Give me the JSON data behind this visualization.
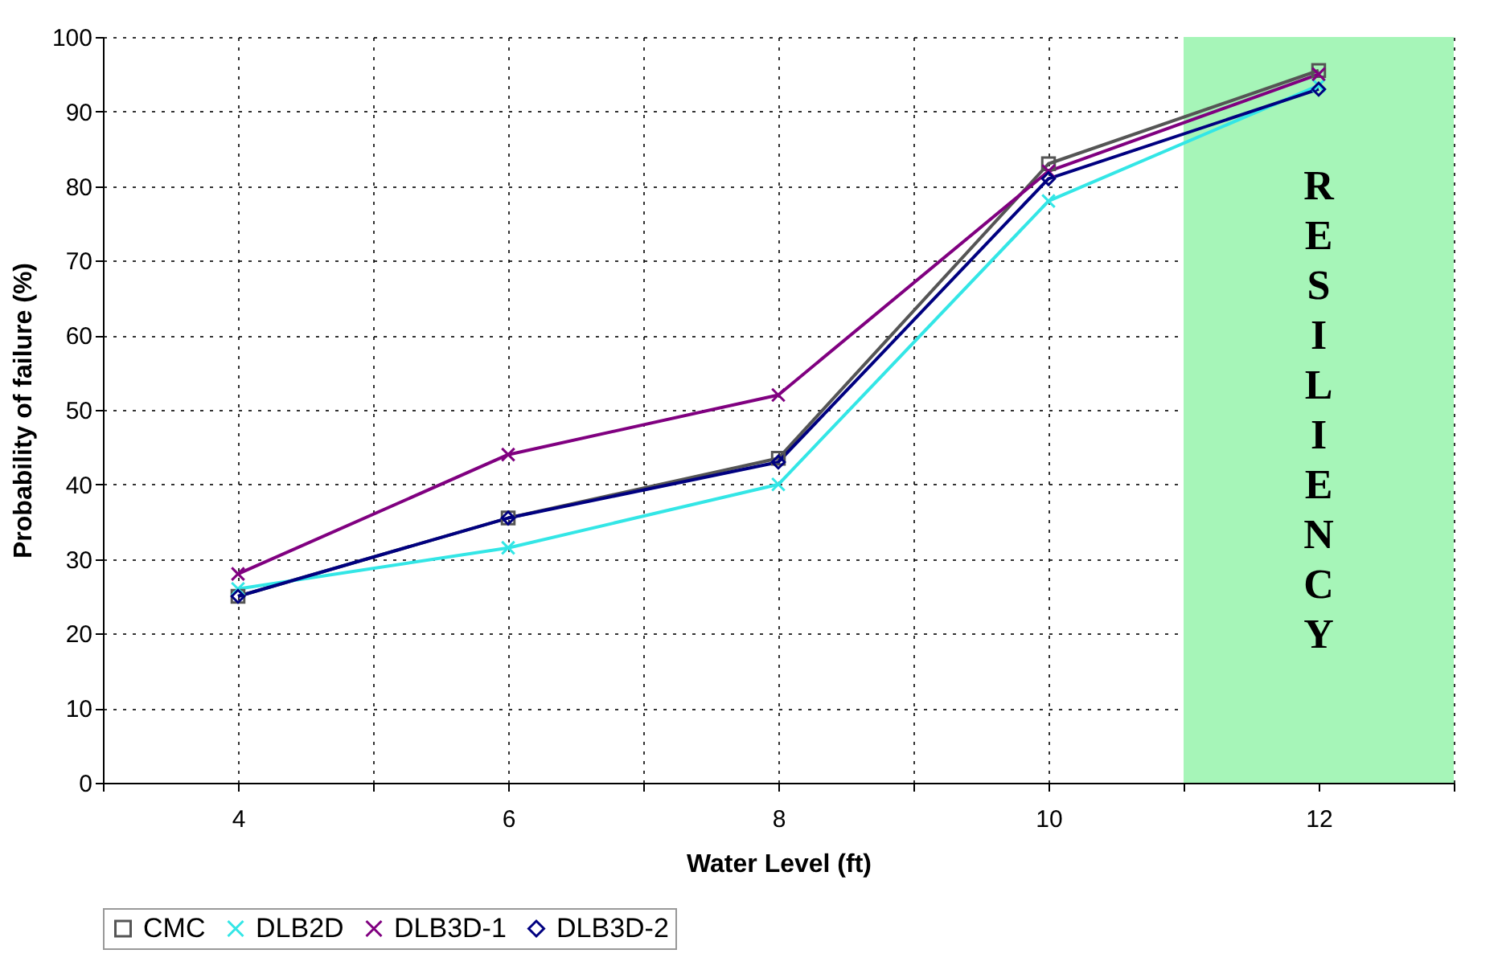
{
  "chart_data": {
    "type": "line",
    "xlabel": "Water Level (ft)",
    "ylabel": "Probability of failure (%)",
    "x": [
      4,
      6,
      8,
      10,
      12
    ],
    "xlim": [
      3,
      13
    ],
    "xticks": [
      {
        "value": 3,
        "label": null
      },
      4,
      {
        "value": 5,
        "label": null
      },
      6,
      {
        "value": 7,
        "label": null
      },
      8,
      {
        "value": 9,
        "label": null
      },
      10,
      {
        "value": 11,
        "label": null
      },
      12,
      {
        "value": 13,
        "label": null
      }
    ],
    "ylim": [
      0,
      100
    ],
    "yticks": [
      0,
      10,
      20,
      30,
      40,
      50,
      60,
      70,
      80,
      90,
      100
    ],
    "grid": true,
    "legend": "bottom",
    "line_style": "solid",
    "series": [
      {
        "name": "CMC",
        "color": "#555555",
        "marker": "square",
        "values": [
          25,
          35.5,
          43.5,
          83,
          95.5
        ]
      },
      {
        "name": "DLB2D",
        "color": "#33e6e6",
        "marker": "cross",
        "values": [
          26,
          31.5,
          40,
          78,
          93.5
        ]
      },
      {
        "name": "DLB3D-1",
        "color": "#800080",
        "marker": "cross",
        "values": [
          28,
          44,
          52,
          82,
          95
        ]
      },
      {
        "name": "DLB3D-2",
        "color": "#000080",
        "marker": "diamond",
        "values": [
          25,
          35.5,
          43,
          81,
          93
        ]
      }
    ],
    "bands": [
      {
        "axis": "x",
        "from": 11,
        "to": 13,
        "label": "RESILIENCY",
        "color": "#a6f5b8"
      }
    ]
  }
}
